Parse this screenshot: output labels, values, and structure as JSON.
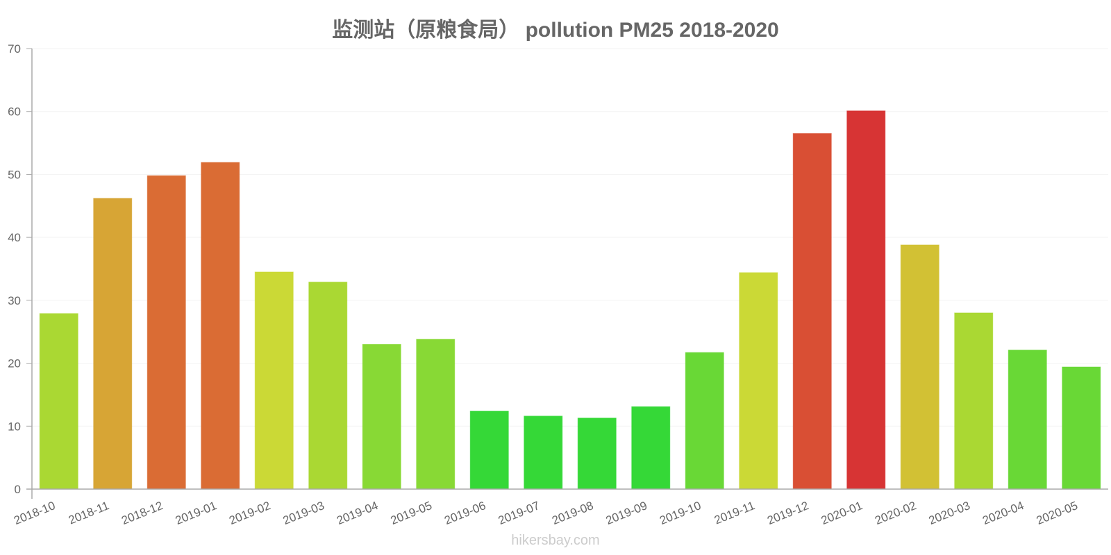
{
  "header": {
    "title": "监测站（原粮食局） pollution PM25 2018-2020"
  },
  "footer": {
    "watermark": "hikersbay.com"
  },
  "chart_data": {
    "type": "bar",
    "title": "监测站（原粮食局） pollution PM25 2018-2020",
    "xlabel": "",
    "ylabel": "",
    "ylim": [
      0,
      70
    ],
    "yticks": [
      0,
      10,
      20,
      30,
      40,
      50,
      60,
      70
    ],
    "grid": true,
    "legend": "none",
    "categories": [
      "2018-10",
      "2018-11",
      "2018-12",
      "2019-01",
      "2019-02",
      "2019-03",
      "2019-04",
      "2019-05",
      "2019-06",
      "2019-07",
      "2019-08",
      "2019-09",
      "2019-10",
      "2019-11",
      "2019-12",
      "2020-01",
      "2020-02",
      "2020-03",
      "2020-04",
      "2020-05"
    ],
    "values": [
      27.9,
      46.2,
      49.8,
      51.9,
      34.5,
      32.9,
      23.0,
      23.8,
      12.4,
      11.6,
      11.3,
      13.1,
      21.7,
      34.4,
      56.5,
      60.1,
      38.8,
      28.0,
      22.1,
      19.4
    ],
    "colors": [
      "#addc34",
      "#dba836",
      "#de6e35",
      "#de6e35",
      "#cfdd37",
      "#addc34",
      "#8bdd36",
      "#8bdd36",
      "#36dc38",
      "#36dc38",
      "#36dc38",
      "#36dc38",
      "#6bdc37",
      "#cfdd37",
      "#dd5135",
      "#db3535",
      "#d6c535",
      "#addc34",
      "#6bdc37",
      "#6bdc37"
    ]
  }
}
